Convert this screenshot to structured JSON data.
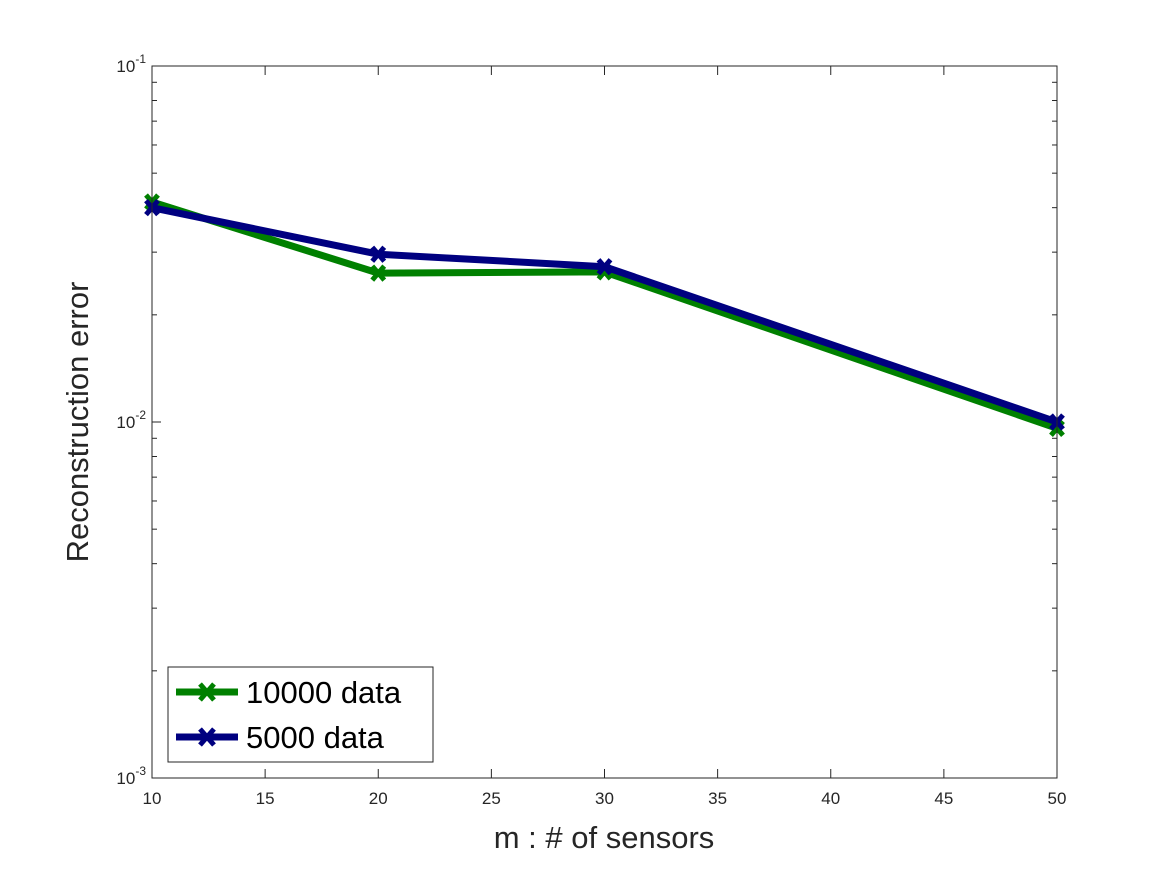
{
  "chart_data": {
    "type": "line",
    "title": "",
    "xlabel": "m : # of sensors",
    "ylabel": "Reconstruction error",
    "xlim": [
      10,
      50
    ],
    "ylim": [
      0.001,
      0.1
    ],
    "yscale": "log",
    "grid": false,
    "x_ticks": [
      10,
      15,
      20,
      25,
      30,
      35,
      40,
      45,
      50
    ],
    "x_tick_labels": [
      "10",
      "15",
      "20",
      "25",
      "30",
      "35",
      "40",
      "45",
      "50"
    ],
    "y_tick_labels": [
      {
        "base": "10",
        "exp": "-3"
      },
      {
        "base": "10",
        "exp": "-2"
      },
      {
        "base": "10",
        "exp": "-1"
      }
    ],
    "legend_position": "bottom-left",
    "series": [
      {
        "name": "10000 data",
        "color": "#008000",
        "x": [
          10,
          20,
          30,
          50
        ],
        "values": [
          0.0415,
          0.0262,
          0.0264,
          0.0096
        ]
      },
      {
        "name": "5000 data",
        "color": "#000080",
        "x": [
          10,
          20,
          30,
          50
        ],
        "values": [
          0.04,
          0.0296,
          0.0273,
          0.01
        ]
      }
    ]
  }
}
